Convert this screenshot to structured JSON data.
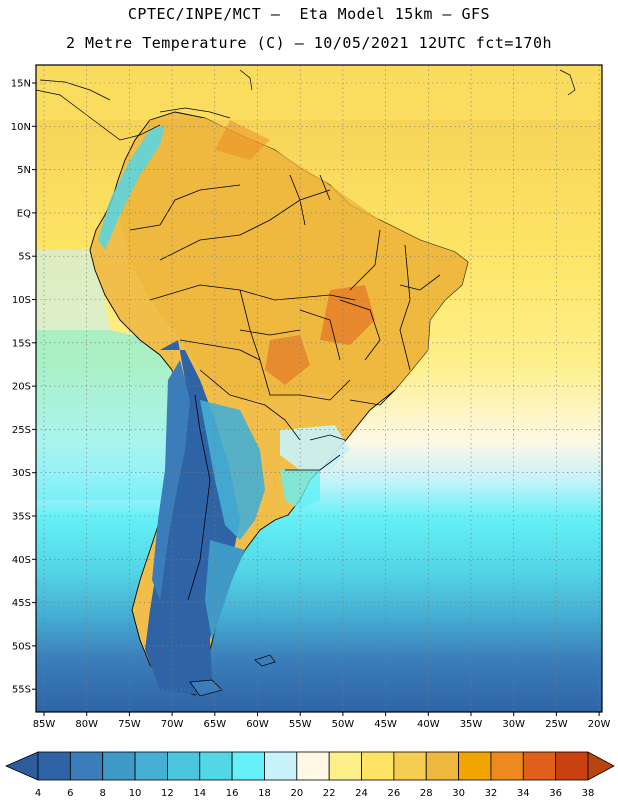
{
  "header": {
    "line1": "CPTEC/INPE/MCT –  Eta Model 15km – GFS",
    "line2": "2 Metre Temperature (C) – 10/05/2021 12UTC fct=170h"
  },
  "map": {
    "lat_labels": [
      "15N",
      "10N",
      "5N",
      "EQ",
      "5S",
      "10S",
      "15S",
      "20S",
      "25S",
      "30S",
      "35S",
      "40S",
      "45S",
      "50S",
      "55S"
    ],
    "lon_labels": [
      "85W",
      "80W",
      "75W",
      "70W",
      "65W",
      "60W",
      "55W",
      "50W",
      "45W",
      "40W",
      "35W",
      "30W",
      "25W",
      "20W"
    ]
  },
  "colorbar": {
    "ticks": [
      "4",
      "6",
      "8",
      "10",
      "12",
      "14",
      "16",
      "18",
      "20",
      "22",
      "24",
      "26",
      "28",
      "30",
      "32",
      "34",
      "36",
      "38"
    ],
    "colors": [
      "#2e64a6",
      "#3a7dba",
      "#3f9ac8",
      "#46afd4",
      "#4bc4dd",
      "#53d6e6",
      "#64f0f6",
      "#c8f2fa",
      "#fff8e4",
      "#fdf08a",
      "#fde465",
      "#f4cd52",
      "#eeb83e",
      "#f2a500",
      "#ec8a1f",
      "#e0601b",
      "#c94110"
    ],
    "low_color": "#2b5c9c",
    "high_color": "#b8450f"
  },
  "colors": {
    "ocean_cool": "#46c4de",
    "ocean_warm": "#fae37a",
    "land_warm": "#f0bb47"
  }
}
